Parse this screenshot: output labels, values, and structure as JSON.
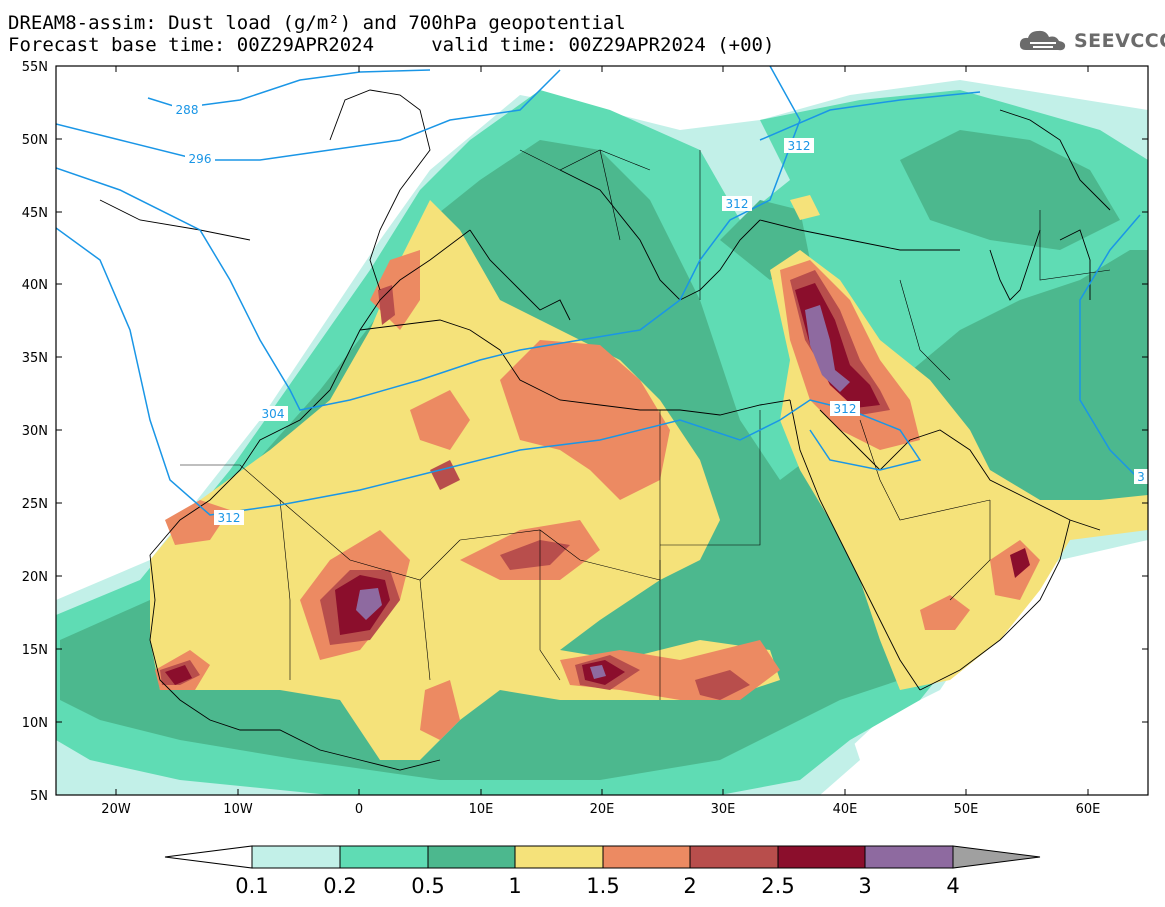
{
  "header": {
    "title_line1": "DREAM8-assim: Dust load (g/m²) and 700hPa geopotential",
    "title_line2": "Forecast base time: 00Z29APR2024     valid time: 00Z29APR2024 (+00)",
    "brand": "SEEVCCC"
  },
  "map": {
    "lat_labels": [
      "55N",
      "50N",
      "45N",
      "40N",
      "35N",
      "30N",
      "25N",
      "20N",
      "15N",
      "10N",
      "5N"
    ],
    "lon_labels": [
      "20W",
      "10W",
      "0",
      "10E",
      "20E",
      "30E",
      "40E",
      "50E",
      "60E"
    ],
    "contour_labels": [
      "288",
      "296",
      "304",
      "312",
      "312",
      "312",
      "312",
      "3"
    ],
    "contour_color": "#1a96e6",
    "coastline_color": "#000000"
  },
  "colorbar": {
    "ticks": [
      "0.1",
      "0.2",
      "0.5",
      "1",
      "1.5",
      "2",
      "2.5",
      "3",
      "4"
    ],
    "colors": [
      "#ffffff",
      "#c2f0e8",
      "#5fdcb4",
      "#4cb88e",
      "#f5e27a",
      "#ec8a62",
      "#b84e4c",
      "#8b0e2c",
      "#8e6aa0",
      "#a0a0a0"
    ]
  }
}
